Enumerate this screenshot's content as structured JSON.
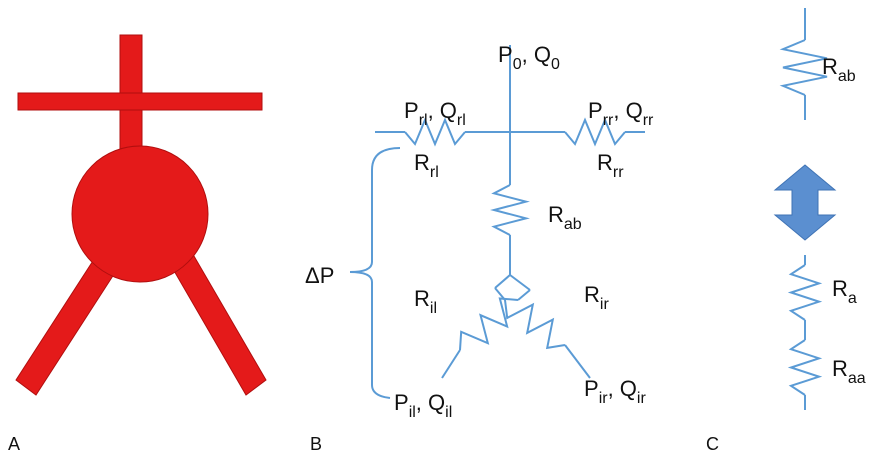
{
  "panels": [
    "A",
    "B",
    "C"
  ],
  "panel_b": {
    "inlet": [
      "P",
      "0",
      ", Q",
      "0"
    ],
    "left_out": [
      "P",
      "rl",
      ", Q",
      "rl"
    ],
    "right_out": [
      "P",
      "rr",
      ", Q",
      "rr"
    ],
    "r_left": [
      "R",
      "rl"
    ],
    "r_right": [
      "R",
      "rr"
    ],
    "r_ab": [
      "R",
      "ab"
    ],
    "r_il": [
      "R",
      "il"
    ],
    "r_ir": [
      "R",
      "ir"
    ],
    "iliac_left": [
      "P",
      "il",
      ", Q",
      "il"
    ],
    "iliac_right": [
      "P",
      "ir",
      ", Q",
      "ir"
    ],
    "delta_p": [
      "ΔP"
    ]
  },
  "panel_c": {
    "r_ab": [
      "R",
      "ab"
    ],
    "r_a": [
      "R",
      "a"
    ],
    "r_aa": [
      "R",
      "aa"
    ]
  }
}
